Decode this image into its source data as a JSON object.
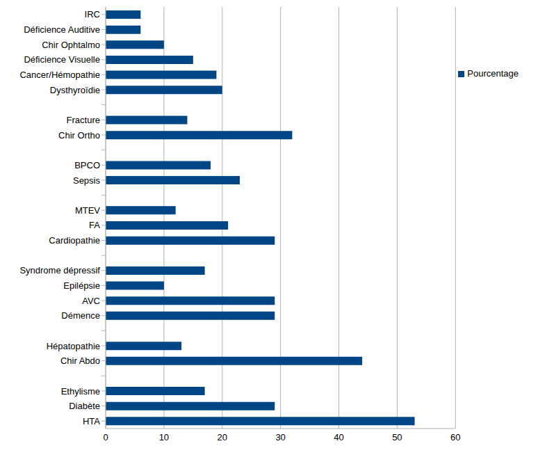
{
  "chart_data": {
    "type": "bar",
    "orientation": "horizontal",
    "categories": [
      "IRC",
      "Déficience Auditive",
      "Chir Ophtalmo",
      "Déficience Visuelle",
      "Cancer/Hémopathie",
      "Dysthyroïdie",
      null,
      "Fracture",
      "Chir Ortho",
      null,
      "BPCO",
      "Sepsis",
      null,
      "MTEV",
      "FA",
      "Cardiopathie",
      null,
      "Syndrome dépressif",
      "Epilépsie",
      "AVC",
      "Démence",
      null,
      "Hépatopathie",
      "Chir Abdo",
      null,
      "Ethylisme",
      "Diabète",
      "HTA"
    ],
    "series": [
      {
        "name": "Pourcentage",
        "color": "#004586",
        "values": [
          6,
          6,
          10,
          15,
          19,
          20,
          null,
          14,
          32,
          null,
          18,
          23,
          null,
          12,
          21,
          29,
          null,
          17,
          10,
          29,
          29,
          null,
          13,
          44,
          null,
          17,
          29,
          53
        ]
      }
    ],
    "xlim": [
      0,
      60
    ],
    "xticks": [
      0,
      10,
      20,
      30,
      40,
      50,
      60
    ],
    "grid": true,
    "legend": "upper right"
  }
}
